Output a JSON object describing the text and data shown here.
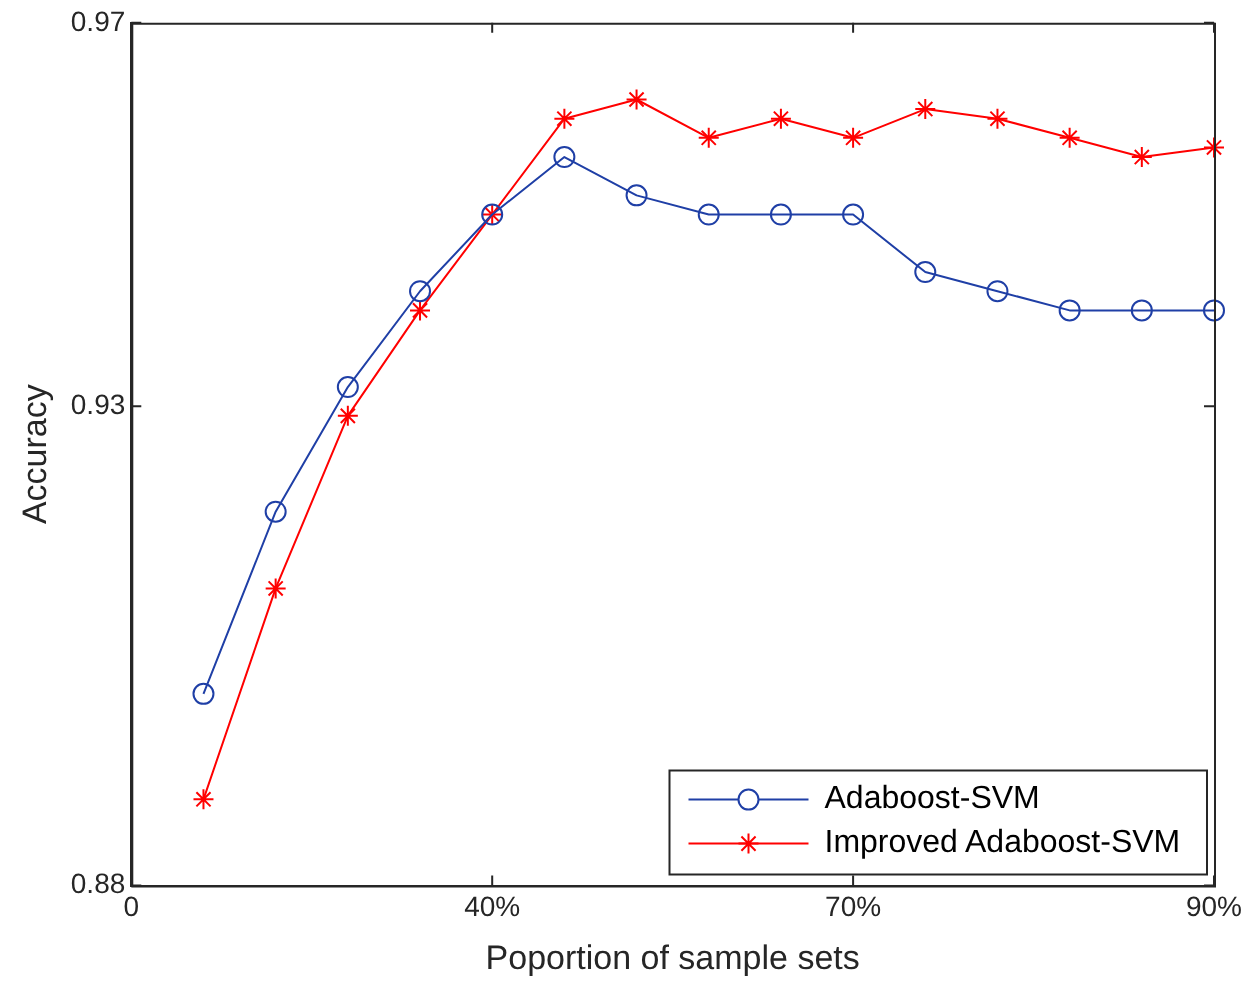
{
  "chart_data": {
    "type": "line",
    "xlabel": "Poportion of sample sets",
    "ylabel": "Accuracy",
    "categories": [
      "0",
      null,
      null,
      null,
      null,
      "40%",
      null,
      null,
      null,
      null,
      "70%",
      null,
      null,
      null,
      null,
      "90%"
    ],
    "ylim": [
      0.88,
      0.97
    ],
    "yticks": [
      0.88,
      0.93,
      0.97
    ],
    "grid": false,
    "legend": "bottom right",
    "line_style": "solid",
    "series": [
      {
        "name": "Adaboost-SVM",
        "color": "#1f3fa6",
        "marker": "circle",
        "values": [
          null,
          0.9,
          0.919,
          0.932,
          0.942,
          0.95,
          0.956,
          0.952,
          0.95,
          0.95,
          0.95,
          0.944,
          0.942,
          0.94,
          0.94,
          0.94
        ]
      },
      {
        "name": "Improved Adaboost-SVM",
        "color": "#ff0000",
        "marker": "cross",
        "values": [
          null,
          0.889,
          0.911,
          0.929,
          0.94,
          0.95,
          0.96,
          0.962,
          0.958,
          0.96,
          0.958,
          0.961,
          0.96,
          0.958,
          0.956,
          0.957
        ]
      }
    ]
  }
}
